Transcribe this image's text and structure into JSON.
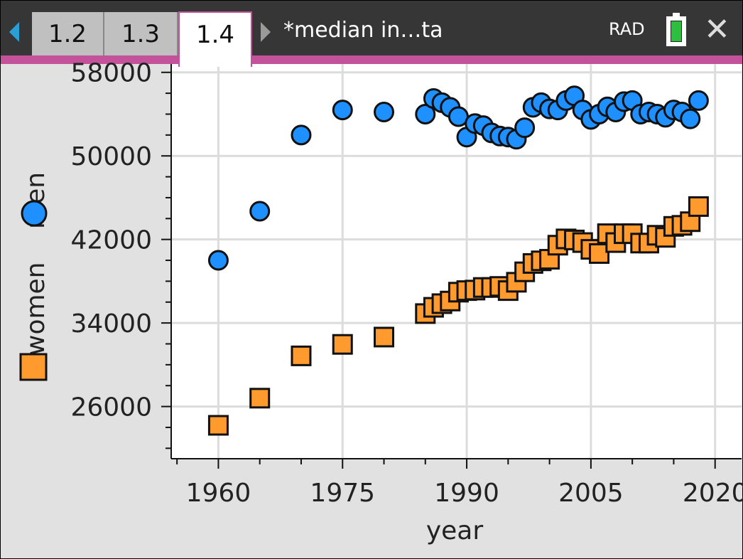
{
  "header": {
    "tabs": [
      {
        "label": "1.2",
        "active": false
      },
      {
        "label": "1.3",
        "active": false
      },
      {
        "label": "1.4",
        "active": true
      }
    ],
    "document_title": "*median in…ta",
    "angle_mode": "RAD",
    "battery_icon": "battery-full-icon",
    "close_icon": "close-icon"
  },
  "colors": {
    "men": "#1e90ff",
    "women": "#ff9a2e",
    "accent": "#c3529b",
    "header_bg": "#363636"
  },
  "chart_data": {
    "type": "scatter",
    "xlabel": "year",
    "ylabel_series": [
      "women",
      "men"
    ],
    "xlim": [
      1954.3,
      2023.2
    ],
    "ylim": [
      21000,
      58800
    ],
    "x_ticks": [
      1960,
      1975,
      1990,
      2005,
      2020
    ],
    "y_ticks": [
      26000,
      34000,
      42000,
      50000,
      58000
    ],
    "grid": true,
    "series": [
      {
        "name": "men",
        "marker": "circle",
        "x": [
          1960,
          1965,
          1970,
          1975,
          1980,
          1985,
          1986,
          1987,
          1988,
          1989,
          1990,
          1991,
          1992,
          1993,
          1994,
          1995,
          1996,
          1997,
          1998,
          1999,
          2000,
          2001,
          2002,
          2003,
          2004,
          2005,
          2006,
          2007,
          2008,
          2009,
          2010,
          2011,
          2012,
          2013,
          2014,
          2015,
          2016,
          2017,
          2018
        ],
        "y": [
          40000,
          44700,
          52000,
          54400,
          54200,
          54000,
          55500,
          55100,
          54650,
          53760,
          51800,
          53100,
          52900,
          52200,
          51900,
          51800,
          51600,
          52700,
          54650,
          55100,
          54500,
          54400,
          55300,
          55750,
          54400,
          53500,
          54000,
          54700,
          54200,
          55200,
          55300,
          54000,
          54200,
          54000,
          53700,
          54400,
          54200,
          53550,
          55300
        ]
      },
      {
        "name": "women",
        "marker": "square",
        "x": [
          1960,
          1965,
          1970,
          1975,
          1980,
          1985,
          1986,
          1987,
          1988,
          1989,
          1990,
          1991,
          1992,
          1993,
          1994,
          1995,
          1996,
          1997,
          1998,
          1999,
          2000,
          2001,
          2002,
          2003,
          2004,
          2005,
          2006,
          2007,
          2008,
          2009,
          2010,
          2011,
          2012,
          2013,
          2014,
          2015,
          2016,
          2017,
          2018
        ],
        "y": [
          24200,
          26800,
          30850,
          31950,
          32650,
          34900,
          35500,
          35850,
          36100,
          36950,
          37100,
          37150,
          37400,
          37400,
          37500,
          37100,
          37900,
          38900,
          39700,
          39950,
          40100,
          41450,
          42050,
          41950,
          41700,
          41050,
          40650,
          42550,
          41700,
          42550,
          42550,
          41650,
          41650,
          42400,
          42200,
          43250,
          43350,
          43700,
          45150
        ]
      }
    ]
  }
}
